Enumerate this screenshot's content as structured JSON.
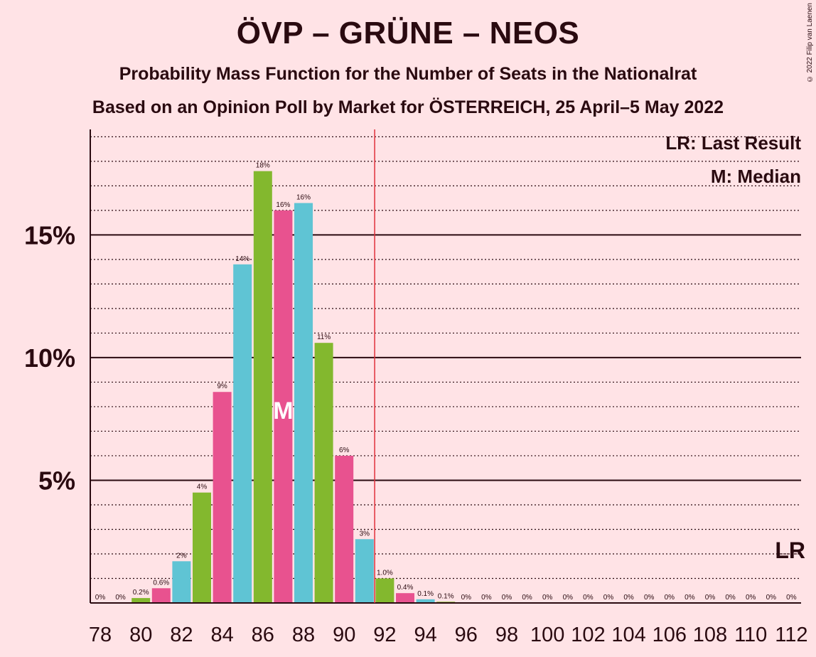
{
  "chart_data": {
    "type": "bar",
    "title": "ÖVP – GRÜNE – NEOS",
    "subtitle": "Probability Mass Function for the Number of Seats in the Nationalrat",
    "subtitle2": "Based on an Opinion Poll by Market for ÖSTERREICH, 25 April–5 May 2022",
    "copyright": "© 2022 Filip van Laenen",
    "x": [
      78,
      79,
      80,
      81,
      82,
      83,
      84,
      85,
      86,
      87,
      88,
      89,
      90,
      91,
      92,
      93,
      94,
      95,
      96,
      97,
      98,
      99,
      100,
      101,
      102,
      103,
      104,
      105,
      106,
      107,
      108,
      109,
      110,
      111,
      112
    ],
    "values": [
      0,
      0,
      0.2,
      0.6,
      1.7,
      4.5,
      8.6,
      13.8,
      17.6,
      16.0,
      16.3,
      10.6,
      6.0,
      2.6,
      1.0,
      0.4,
      0.15,
      0.05,
      0,
      0,
      0,
      0,
      0,
      0,
      0,
      0,
      0,
      0,
      0,
      0,
      0,
      0,
      0,
      0,
      0
    ],
    "value_labels": [
      "0%",
      "0%",
      "0.2%",
      "0.6%",
      "2%",
      "4%",
      "9%",
      "14%",
      "18%",
      "16%",
      "16%",
      "11%",
      "6%",
      "3%",
      "1.0%",
      "0.4%",
      "0.1%",
      "0.1%",
      "0%",
      "0%",
      "0%",
      "0%",
      "0%",
      "0%",
      "0%",
      "0%",
      "0%",
      "0%",
      "0%",
      "0%",
      "0%",
      "0%",
      "0%",
      "0%",
      "0%"
    ],
    "x_tick_labels": [
      "78",
      "80",
      "82",
      "84",
      "86",
      "88",
      "90",
      "92",
      "94",
      "96",
      "98",
      "100",
      "102",
      "104",
      "106",
      "108",
      "110",
      "112"
    ],
    "y_tick_labels": [
      "5%",
      "10%",
      "15%"
    ],
    "y_ticks": [
      5,
      10,
      15
    ],
    "ylim": [
      0,
      19.3
    ],
    "majority_line": 91.5,
    "median_seats": 87,
    "median_marker": "M",
    "last_result_seats": 112,
    "last_result_marker": "LR",
    "legend": [
      "LR: Last Result",
      "M: Median"
    ],
    "legend_position": "top-right",
    "colors": [
      "#E8528F",
      "#5FC4D4",
      "#83B82E"
    ],
    "majority_color": "#E0303A"
  }
}
